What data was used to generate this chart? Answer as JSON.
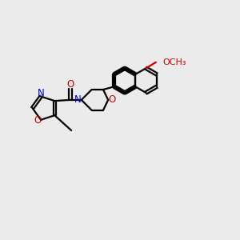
{
  "bg_color": "#ebebeb",
  "bond_color": "#000000",
  "N_color": "#0000cc",
  "O_color": "#cc0000",
  "line_width": 1.6,
  "figsize": [
    3.0,
    3.0
  ],
  "dpi": 100,
  "xlim": [
    0,
    12
  ],
  "ylim": [
    0,
    10
  ]
}
